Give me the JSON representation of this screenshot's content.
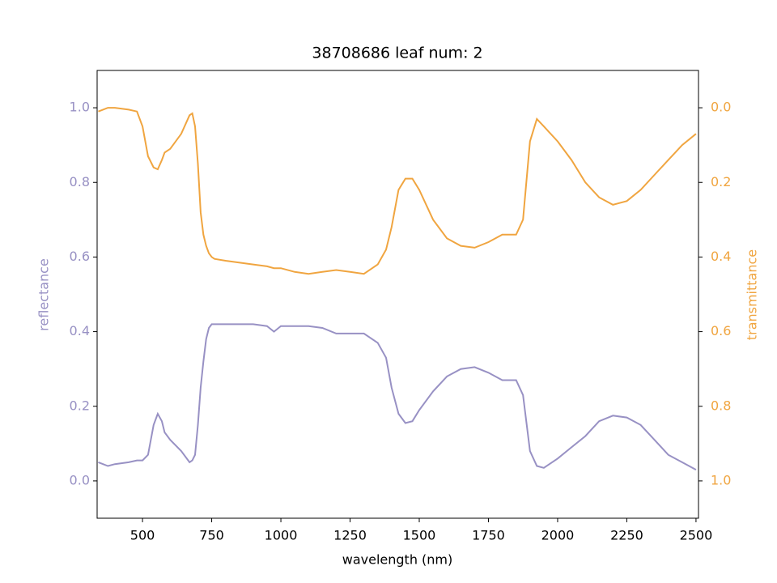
{
  "chart_data": {
    "type": "line",
    "title": "38708686 leaf num: 2",
    "xlabel": "wavelength (nm)",
    "ylabel": "reflectance",
    "y2label": "transmittance",
    "x": [
      340,
      375,
      400,
      450,
      480,
      500,
      520,
      540,
      555,
      570,
      580,
      600,
      640,
      670,
      680,
      690,
      700,
      710,
      720,
      730,
      740,
      750,
      760,
      800,
      900,
      950,
      975,
      1000,
      1050,
      1100,
      1150,
      1200,
      1250,
      1300,
      1350,
      1380,
      1400,
      1425,
      1450,
      1475,
      1500,
      1550,
      1600,
      1650,
      1700,
      1750,
      1800,
      1850,
      1875,
      1900,
      1925,
      1950,
      2000,
      2050,
      2100,
      2150,
      2200,
      2250,
      2300,
      2350,
      2400,
      2450,
      2500
    ],
    "series": [
      {
        "name": "reflectance",
        "color": "#9891c4",
        "axis": "y",
        "values": [
          0.05,
          0.04,
          0.045,
          0.05,
          0.055,
          0.055,
          0.07,
          0.15,
          0.18,
          0.16,
          0.13,
          0.11,
          0.08,
          0.05,
          0.055,
          0.07,
          0.15,
          0.25,
          0.32,
          0.38,
          0.41,
          0.42,
          0.42,
          0.42,
          0.42,
          0.415,
          0.4,
          0.415,
          0.415,
          0.415,
          0.41,
          0.395,
          0.395,
          0.395,
          0.37,
          0.33,
          0.25,
          0.18,
          0.155,
          0.16,
          0.19,
          0.24,
          0.28,
          0.3,
          0.305,
          0.29,
          0.27,
          0.27,
          0.23,
          0.08,
          0.04,
          0.035,
          0.06,
          0.09,
          0.12,
          0.16,
          0.175,
          0.17,
          0.15,
          0.11,
          0.07,
          0.05,
          0.03
        ]
      },
      {
        "name": "transmittance",
        "color": "#f0a540",
        "axis": "y2",
        "values": [
          0.01,
          0,
          0,
          0.005,
          0.01,
          0.05,
          0.13,
          0.16,
          0.165,
          0.14,
          0.12,
          0.11,
          0.07,
          0.02,
          0.015,
          0.05,
          0.15,
          0.28,
          0.34,
          0.37,
          0.39,
          0.4,
          0.405,
          0.41,
          0.42,
          0.425,
          0.43,
          0.43,
          0.44,
          0.445,
          0.44,
          0.435,
          0.44,
          0.445,
          0.42,
          0.38,
          0.32,
          0.22,
          0.19,
          0.19,
          0.22,
          0.3,
          0.35,
          0.37,
          0.375,
          0.36,
          0.34,
          0.34,
          0.3,
          0.09,
          0.03,
          0.05,
          0.09,
          0.14,
          0.2,
          0.24,
          0.26,
          0.25,
          0.22,
          0.18,
          0.14,
          0.1,
          0.07
        ]
      }
    ],
    "xlim": [
      336,
      2509
    ],
    "xticks": [
      500,
      750,
      1000,
      1250,
      1500,
      1750,
      2000,
      2250,
      2500
    ],
    "ylim": [
      -0.1,
      1.1
    ],
    "yticks": [
      {
        "value": 0,
        "label": "0.0"
      },
      0.2,
      0.4,
      0.6,
      0.8,
      {
        "value": 1,
        "label": "1.0"
      }
    ],
    "y2lim": [
      1.1,
      -0.1
    ],
    "y2ticks": [
      {
        "value": 0,
        "label": "0.0"
      },
      0.2,
      0.4,
      0.6,
      0.8,
      {
        "value": 1,
        "label": "1.0"
      }
    ],
    "grid": false
  }
}
